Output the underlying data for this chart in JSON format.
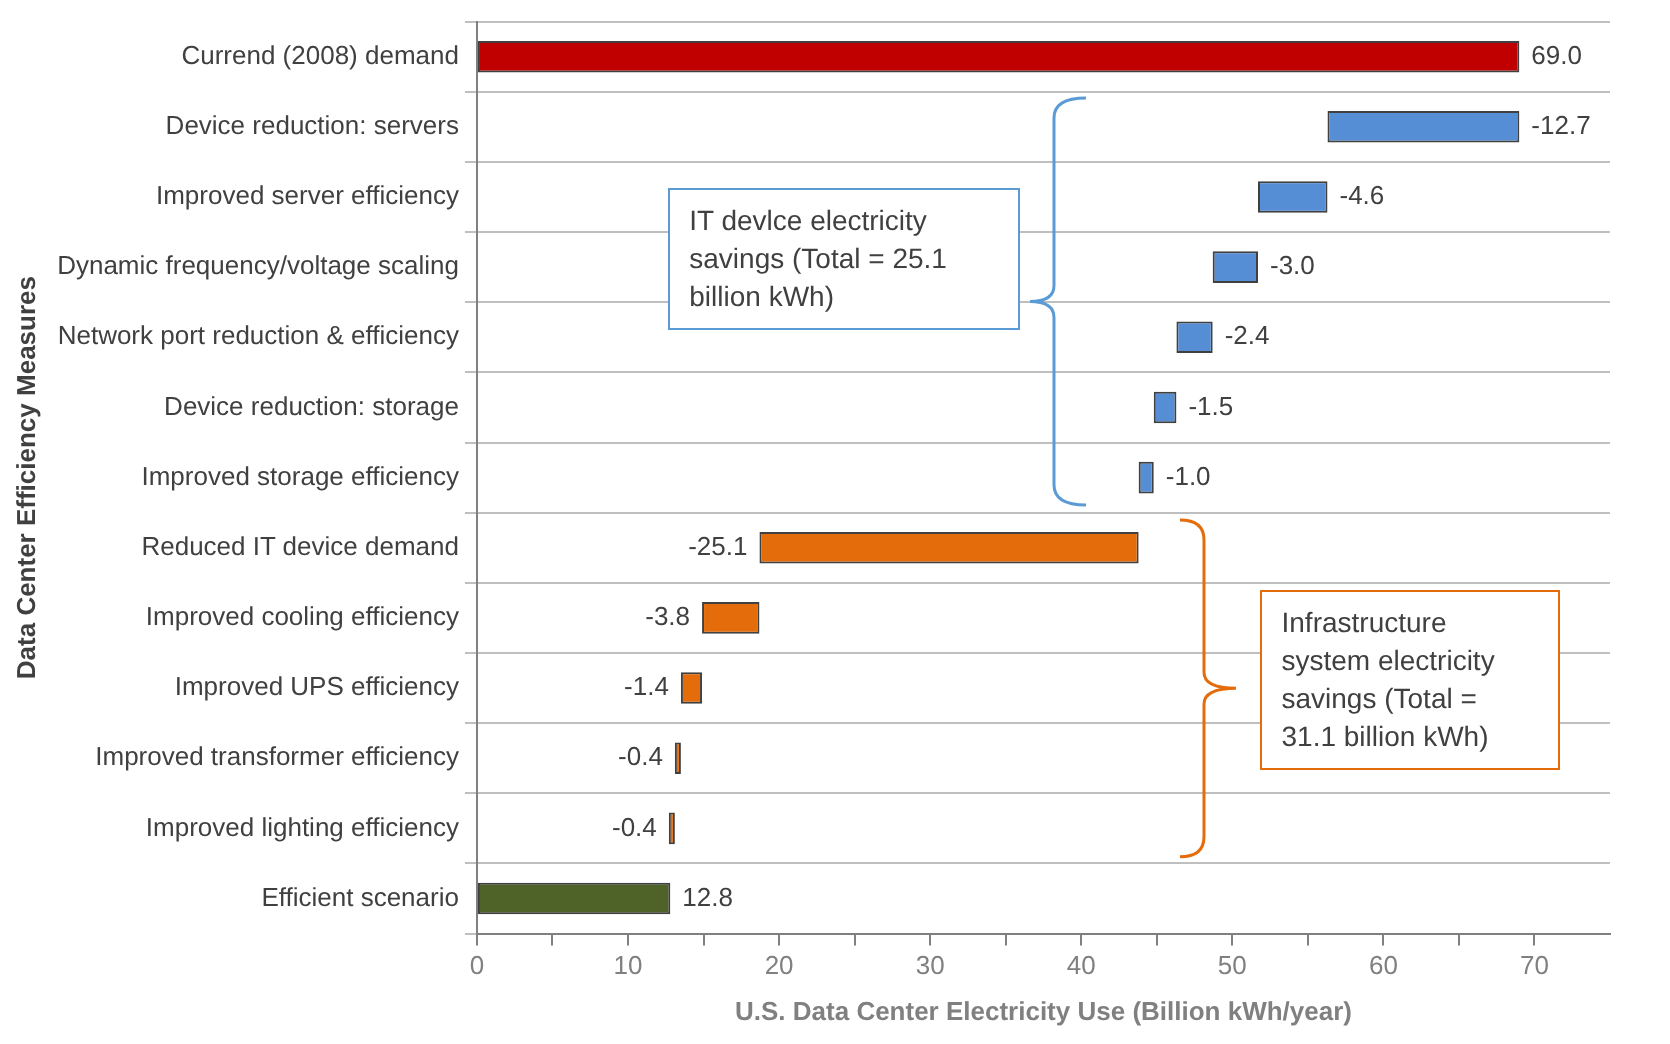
{
  "chart_data": {
    "type": "bar",
    "orientation": "horizontal",
    "xlabel": "U.S. Data Center Electricity Use (Billion kWh/year)",
    "ylabel": "Data Center Efficiency Measures",
    "categories": [
      "Currend (2008) demand",
      "Device reduction: servers",
      "Improved server efficiency",
      "Dynamic frequency/voltage scaling",
      "Network port reduction & efficiency",
      "Device reduction: storage",
      "Improved storage efficiency",
      "Reduced IT device demand",
      "Improved cooling efficiency",
      "Improved UPS efficiency",
      "Improved transformer efficiency",
      "Improved lighting efficiency",
      "Efficient scenario"
    ],
    "values": [
      69.0,
      -12.7,
      -4.6,
      -3.0,
      -2.4,
      -1.5,
      -1.0,
      -25.1,
      -3.8,
      -1.4,
      -0.4,
      -0.4,
      12.8
    ],
    "base": [
      0,
      69.0,
      56.3,
      51.7,
      48.7,
      46.3,
      44.8,
      43.8,
      18.7,
      14.9,
      13.5,
      13.1,
      0
    ],
    "colors": [
      "#c00000",
      "#558ed5",
      "#558ed5",
      "#558ed5",
      "#558ed5",
      "#558ed5",
      "#558ed5",
      "#e46c0a",
      "#e46c0a",
      "#e46c0a",
      "#e46c0a",
      "#e46c0a",
      "#4f6228"
    ],
    "value_labels": [
      "69.0",
      "-12.7",
      "-4.6",
      "-3.0",
      "-2.4",
      "-1.5",
      "-1.0",
      "-25.1",
      "-3.8",
      "-1.4",
      "-0.4",
      "-0.4",
      "12.8"
    ],
    "xlim": [
      0,
      75
    ],
    "xticks": [
      0,
      {
        "value": 5,
        "label": null
      },
      10,
      {
        "value": 15,
        "label": null
      },
      20,
      {
        "value": 25,
        "label": null
      },
      30,
      {
        "value": 35,
        "label": null
      },
      40,
      {
        "value": 45,
        "label": null
      },
      50,
      {
        "value": 55,
        "label": null
      },
      60,
      {
        "value": 65,
        "label": null
      },
      70
    ],
    "grid": "y",
    "legend": false,
    "annotations": [
      "IT devlce electricity savings (Total = 25.1 billion kWh)",
      "Infrastructure system electricity savings (Total = 31.1 billion kWh)"
    ]
  }
}
